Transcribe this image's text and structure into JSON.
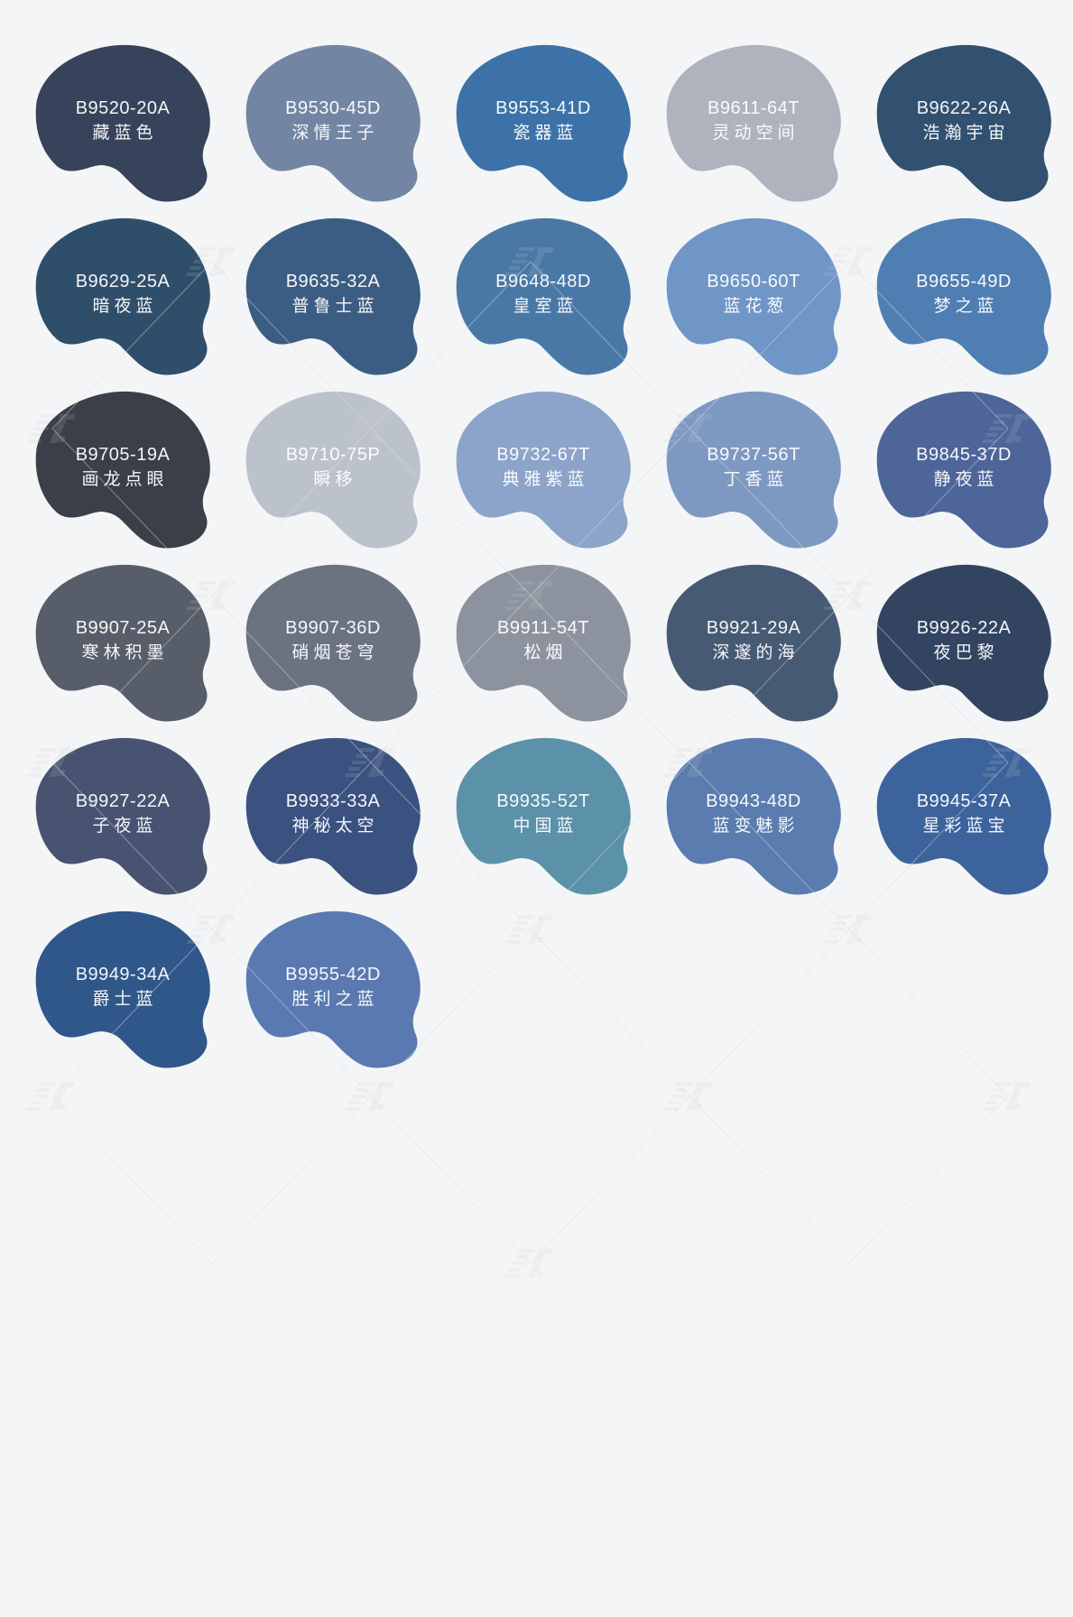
{
  "page": {
    "background_color": "#f4f5f6",
    "swatch_text_color": "#ffffff"
  },
  "palette": {
    "swatches": [
      {
        "code": "B9520-20A",
        "name": "藏蓝色",
        "color": "#36435a"
      },
      {
        "code": "B9530-45D",
        "name": "深情王子",
        "color": "#7286a4"
      },
      {
        "code": "B9553-41D",
        "name": "瓷器蓝",
        "color": "#3d72a8"
      },
      {
        "code": "B9611-64T",
        "name": "灵动空间",
        "color": "#aeb3be"
      },
      {
        "code": "B9622-26A",
        "name": "浩瀚宇宙",
        "color": "#32506f"
      },
      {
        "code": "B9629-25A",
        "name": "暗夜蓝",
        "color": "#2f4e6a"
      },
      {
        "code": "B9635-32A",
        "name": "普鲁士蓝",
        "color": "#3c5d83"
      },
      {
        "code": "B9648-48D",
        "name": "皇室蓝",
        "color": "#4a78a6"
      },
      {
        "code": "B9650-60T",
        "name": "蓝花葱",
        "color": "#6f96c6"
      },
      {
        "code": "B9655-49D",
        "name": "梦之蓝",
        "color": "#4f7eb3"
      },
      {
        "code": "B9705-19A",
        "name": "画龙点眼",
        "color": "#3a3f48"
      },
      {
        "code": "B9710-75P",
        "name": "瞬移",
        "color": "#bcc2cb"
      },
      {
        "code": "B9732-67T",
        "name": "典雅紫蓝",
        "color": "#8ca4ca"
      },
      {
        "code": "B9737-56T",
        "name": "丁香蓝",
        "color": "#7d99c2"
      },
      {
        "code": "B9845-37D",
        "name": "静夜蓝",
        "color": "#4d6598"
      },
      {
        "code": "B9907-25A",
        "name": "寒林积墨",
        "color": "#575e6a"
      },
      {
        "code": "B9907-36D",
        "name": "硝烟苍穹",
        "color": "#6b7280"
      },
      {
        "code": "B9911-54T",
        "name": "松烟",
        "color": "#8d939e"
      },
      {
        "code": "B9921-29A",
        "name": "深邃的海",
        "color": "#475a73"
      },
      {
        "code": "B9926-22A",
        "name": "夜巴黎",
        "color": "#334460"
      },
      {
        "code": "B9927-22A",
        "name": "子夜蓝",
        "color": "#475371"
      },
      {
        "code": "B9933-33A",
        "name": "神秘太空",
        "color": "#3b5280"
      },
      {
        "code": "B9935-52T",
        "name": "中国蓝",
        "color": "#5b91a9"
      },
      {
        "code": "B9943-48D",
        "name": "蓝变魅影",
        "color": "#5a7cae"
      },
      {
        "code": "B9945-37A",
        "name": "星彩蓝宝",
        "color": "#3d639c"
      },
      {
        "code": "B9949-34A",
        "name": "爵士蓝",
        "color": "#2f578a"
      },
      {
        "code": "B9955-42D",
        "name": "胜利之蓝",
        "color": "#5a79b0"
      }
    ]
  },
  "watermark": {
    "icon": "stamp-logo-icon",
    "color": "#c9ccd2"
  }
}
